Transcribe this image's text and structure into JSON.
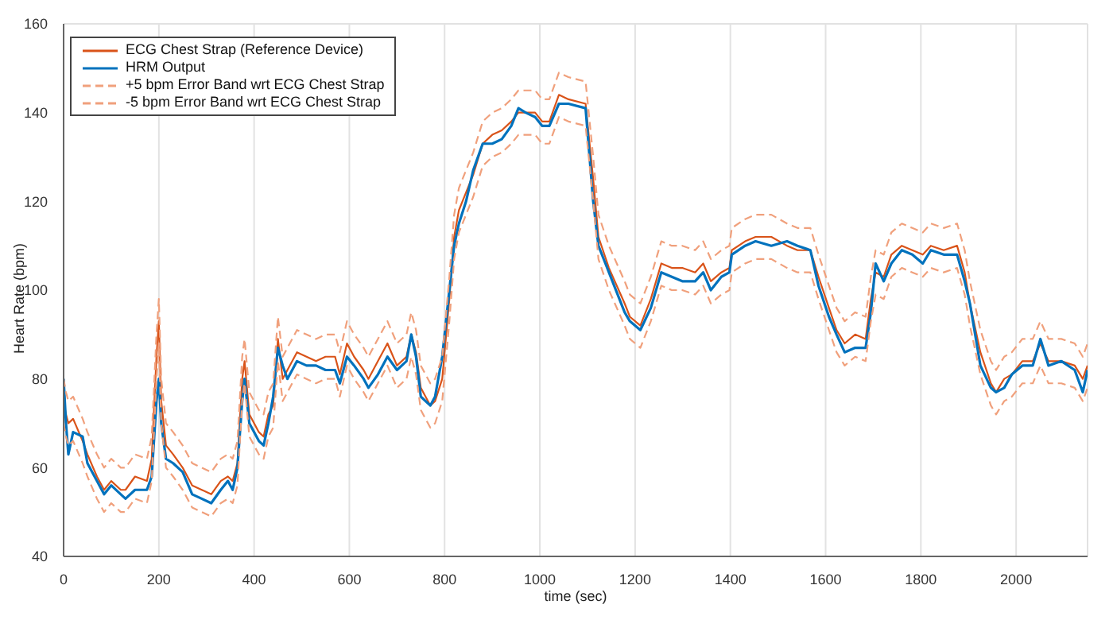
{
  "chart_data": {
    "type": "line",
    "xlabel": "time (sec)",
    "ylabel": "Heart Rate (bpm)",
    "x": [
      0,
      5,
      10,
      20,
      40,
      50,
      70,
      85,
      100,
      120,
      130,
      150,
      175,
      185,
      195,
      200,
      205,
      215,
      230,
      250,
      270,
      290,
      310,
      330,
      345,
      355,
      365,
      375,
      380,
      390,
      410,
      420,
      430,
      440,
      450,
      460,
      470,
      490,
      510,
      530,
      550,
      570,
      580,
      595,
      610,
      630,
      640,
      660,
      680,
      700,
      720,
      730,
      740,
      750,
      770,
      780,
      795,
      810,
      820,
      830,
      845,
      860,
      880,
      900,
      920,
      940,
      955,
      970,
      990,
      1005,
      1020,
      1040,
      1060,
      1096,
      1112,
      1123,
      1145,
      1178,
      1189,
      1211,
      1233,
      1255,
      1277,
      1299,
      1326,
      1343,
      1359,
      1381,
      1398,
      1403,
      1431,
      1453,
      1486,
      1519,
      1541,
      1568,
      1585,
      1607,
      1623,
      1640,
      1662,
      1684,
      1695,
      1705,
      1722,
      1738,
      1760,
      1782,
      1804,
      1821,
      1848,
      1876,
      1892,
      1903,
      1925,
      1947,
      1958,
      1975,
      1991,
      2013,
      2035,
      2051,
      2068,
      2095,
      2123,
      2140,
      2150
    ],
    "series": [
      {
        "name": "ECG Chest Strap (Reference Device)",
        "color": "#d95319",
        "line_style": "solid",
        "values": [
          75,
          72,
          70,
          71,
          66,
          63,
          58,
          55,
          57,
          55,
          55,
          58,
          57,
          62,
          85,
          93,
          75,
          65,
          63,
          60,
          56,
          55,
          54,
          57,
          58,
          57,
          61,
          80,
          84,
          72,
          68,
          67,
          72,
          74,
          89,
          80,
          82,
          86,
          85,
          84,
          85,
          85,
          81,
          88,
          85,
          82,
          80,
          84,
          88,
          83,
          85,
          90,
          86,
          78,
          74,
          75,
          80,
          98,
          112,
          118,
          122,
          126,
          133,
          135,
          136,
          138,
          140,
          140,
          140,
          138,
          138,
          144,
          143,
          142,
          125,
          112,
          105,
          97,
          94,
          92,
          98,
          106,
          105,
          105,
          104,
          106,
          102,
          104,
          105,
          109,
          111,
          112,
          112,
          110,
          109,
          109,
          103,
          96,
          91,
          88,
          90,
          89,
          98,
          104,
          103,
          108,
          110,
          109,
          108,
          110,
          109,
          110,
          104,
          97,
          86,
          79,
          77,
          80,
          81,
          84,
          84,
          88,
          84,
          84,
          83,
          80,
          83
        ]
      },
      {
        "name": "HRM Output",
        "color": "#0072bd",
        "line_style": "solid",
        "values": [
          80,
          70,
          63,
          68,
          67,
          61,
          57,
          54,
          56,
          54,
          53,
          55,
          55,
          58,
          75,
          80,
          70,
          62,
          61,
          59,
          54,
          53,
          52,
          55,
          57,
          55,
          60,
          75,
          80,
          70,
          66,
          65,
          70,
          76,
          87,
          83,
          80,
          84,
          83,
          83,
          82,
          82,
          79,
          85,
          83,
          80,
          78,
          81,
          85,
          82,
          84,
          90,
          85,
          76,
          74,
          76,
          85,
          100,
          110,
          115,
          120,
          127,
          133,
          133,
          134,
          137,
          141,
          140,
          139,
          137,
          137,
          142,
          142,
          141,
          120,
          110,
          104,
          95,
          93,
          91,
          96,
          104,
          103,
          102,
          102,
          104,
          100,
          103,
          104,
          108,
          110,
          111,
          110,
          111,
          110,
          109,
          101,
          94,
          90,
          86,
          87,
          87,
          95,
          106,
          102,
          106,
          109,
          108,
          106,
          109,
          108,
          108,
          102,
          97,
          83,
          78,
          77,
          78,
          81,
          83,
          83,
          89,
          83,
          84,
          82,
          77,
          82
        ]
      },
      {
        "name": "+5 bpm Error Band wrt ECG Chest Strap",
        "color": "#f0a07c",
        "line_style": "dashed",
        "values": [
          80,
          77,
          75,
          76,
          71,
          68,
          63,
          60,
          62,
          60,
          60,
          63,
          62,
          67,
          90,
          98,
          80,
          70,
          68,
          65,
          61,
          60,
          59,
          62,
          63,
          62,
          66,
          85,
          89,
          77,
          73,
          72,
          77,
          79,
          94,
          85,
          87,
          91,
          90,
          89,
          90,
          90,
          86,
          93,
          90,
          87,
          85,
          89,
          93,
          88,
          90,
          95,
          91,
          83,
          79,
          80,
          85,
          103,
          117,
          123,
          127,
          131,
          138,
          140,
          141,
          143,
          145,
          145,
          145,
          143,
          143,
          149,
          148,
          147,
          130,
          117,
          110,
          102,
          99,
          97,
          103,
          111,
          110,
          110,
          109,
          111,
          107,
          109,
          110,
          114,
          116,
          117,
          117,
          115,
          114,
          114,
          108,
          101,
          96,
          93,
          95,
          94,
          103,
          109,
          108,
          113,
          115,
          114,
          113,
          115,
          114,
          115,
          109,
          102,
          91,
          84,
          82,
          85,
          86,
          89,
          89,
          93,
          89,
          89,
          88,
          85,
          88
        ]
      },
      {
        "name": "-5 bpm Error Band wrt ECG Chest Strap",
        "color": "#f0a07c",
        "line_style": "dashed",
        "values": [
          70,
          67,
          65,
          66,
          61,
          58,
          53,
          50,
          52,
          50,
          50,
          53,
          52,
          57,
          80,
          88,
          70,
          60,
          58,
          55,
          51,
          50,
          49,
          52,
          53,
          52,
          56,
          75,
          79,
          67,
          63,
          62,
          67,
          69,
          84,
          75,
          77,
          81,
          80,
          79,
          80,
          80,
          76,
          83,
          80,
          77,
          75,
          79,
          83,
          78,
          80,
          85,
          81,
          73,
          69,
          70,
          75,
          93,
          107,
          113,
          117,
          121,
          128,
          130,
          131,
          133,
          135,
          135,
          135,
          133,
          133,
          139,
          138,
          137,
          120,
          107,
          100,
          92,
          89,
          87,
          93,
          101,
          100,
          100,
          99,
          101,
          97,
          99,
          100,
          104,
          106,
          107,
          107,
          105,
          104,
          104,
          98,
          91,
          86,
          83,
          85,
          84,
          93,
          99,
          98,
          103,
          105,
          104,
          103,
          105,
          104,
          105,
          99,
          92,
          81,
          74,
          72,
          75,
          76,
          79,
          79,
          83,
          79,
          79,
          78,
          75,
          78
        ]
      }
    ],
    "xlim": [
      0,
      2150
    ],
    "xticks": [
      0,
      200,
      400,
      600,
      800,
      1000,
      1200,
      1400,
      1600,
      1800,
      2000
    ],
    "ylim": [
      40,
      160
    ],
    "yticks": [
      40,
      60,
      80,
      100,
      120,
      140,
      160
    ],
    "grid": true,
    "legend": "top left",
    "marker": "none"
  }
}
